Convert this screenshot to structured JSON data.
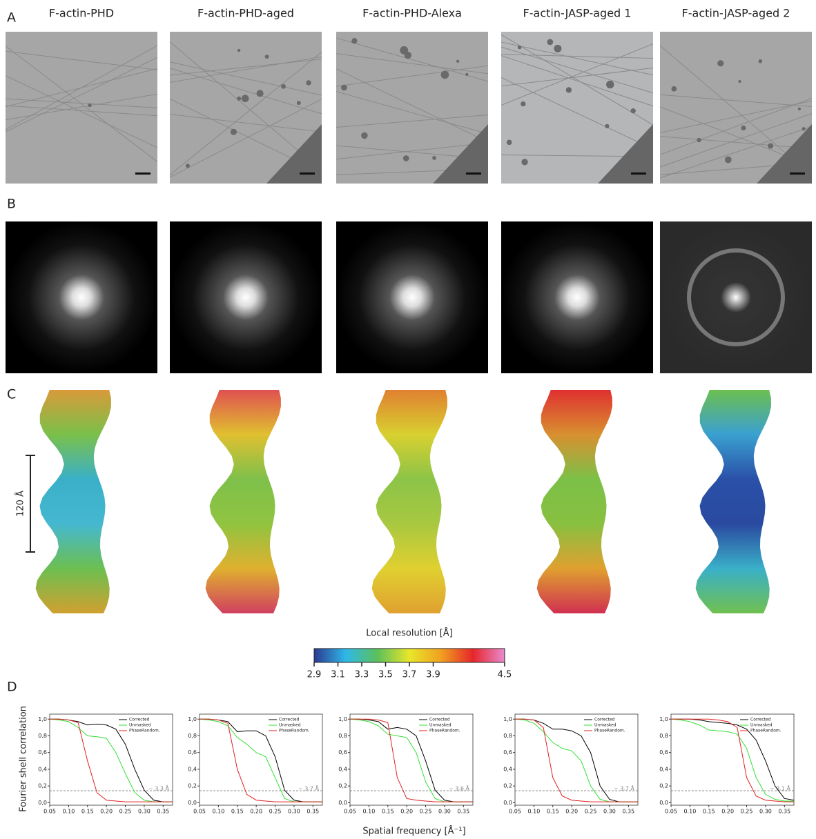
{
  "panel_labels": [
    "A",
    "B",
    "C",
    "D"
  ],
  "columns": [
    "F-actin-PHD",
    "F-actin-PHD-aged",
    "F-actin-PHD-Alexa",
    "F-actin-JASP-aged 1",
    "F-actin-JASP-aged 2"
  ],
  "scale_bar": "120 Å",
  "colorbar": {
    "label": "Local resolution [Å]",
    "lim": [
      2.9,
      4.5
    ],
    "ticks": [
      2.9,
      3.1,
      3.3,
      3.5,
      3.7,
      3.9,
      4.5
    ],
    "colors": [
      "#2b3a8f",
      "#2fb8e8",
      "#5cc05a",
      "#e9e62a",
      "#f0a020",
      "#e6262a",
      "#e98ad0"
    ]
  },
  "fsc": {
    "x_label": "Spatial frequency [Å⁻¹]",
    "y_label": "Fourier shell correlation",
    "xlim": [
      0.05,
      0.375
    ],
    "ylim": [
      -0.03,
      1.06
    ],
    "xticks": [
      {
        "value": 0.05,
        "label": "0.05"
      },
      {
        "value": 0.1,
        "label": "0.10"
      },
      {
        "value": 0.15,
        "label": "0.15"
      },
      {
        "value": 0.2,
        "label": "0.20"
      },
      {
        "value": 0.25,
        "label": "0.25"
      },
      {
        "value": 0.3,
        "label": "0.30"
      },
      {
        "value": 0.35,
        "label": "0.35"
      }
    ],
    "yticks": [
      {
        "value": 0,
        "label": "0,0"
      },
      {
        "value": 0.2,
        "label": "0,2"
      },
      {
        "value": 0.4,
        "label": "0,4"
      },
      {
        "value": 0.6,
        "label": "0,6"
      },
      {
        "value": 0.8,
        "label": "0,8"
      },
      {
        "value": 1,
        "label": "1,0"
      }
    ],
    "threshold": 0.143,
    "x": [
      0.05,
      0.075,
      0.1,
      0.125,
      0.15,
      0.175,
      0.2,
      0.225,
      0.25,
      0.275,
      0.3,
      0.325,
      0.35,
      0.375
    ],
    "plots": [
      {
        "resolution_label": "~ 3.3 Å",
        "series": [
          {
            "name": "Corrected",
            "color": "#000000",
            "values": [
              1,
              1,
              0.99,
              0.97,
              0.93,
              0.94,
              0.93,
              0.88,
              0.7,
              0.4,
              0.15,
              0.03,
              0.01,
              0.01
            ]
          },
          {
            "name": "Unmasked",
            "color": "#33e033",
            "values": [
              1,
              0.99,
              0.97,
              0.9,
              0.8,
              0.79,
              0.77,
              0.6,
              0.35,
              0.12,
              0.03,
              0.01,
              0.01,
              0.01
            ]
          },
          {
            "name": "PhaseRandom.",
            "color": "#e02020",
            "values": [
              1,
              1,
              0.99,
              0.96,
              0.5,
              0.12,
              0.03,
              0.02,
              0.01,
              0.01,
              0.01,
              0.01,
              0.01,
              0.01
            ]
          }
        ]
      },
      {
        "resolution_label": "~ 3.7 Å",
        "series": [
          {
            "name": "Corrected",
            "color": "#000000",
            "values": [
              1,
              1,
              0.99,
              0.97,
              0.85,
              0.86,
              0.86,
              0.8,
              0.55,
              0.15,
              0.03,
              0.01,
              0.01,
              0.01
            ]
          },
          {
            "name": "Unmasked",
            "color": "#33e033",
            "values": [
              1,
              0.99,
              0.97,
              0.92,
              0.78,
              0.7,
              0.6,
              0.55,
              0.3,
              0.05,
              0.01,
              0.01,
              0.01,
              0.01
            ]
          },
          {
            "name": "PhaseRandom.",
            "color": "#e02020",
            "values": [
              1,
              1,
              0.99,
              0.95,
              0.4,
              0.1,
              0.03,
              0.02,
              0.01,
              0.01,
              0.01,
              0.01,
              0.01,
              0.01
            ]
          }
        ]
      },
      {
        "resolution_label": "~ 3.6 Å",
        "series": [
          {
            "name": "Corrected",
            "color": "#000000",
            "values": [
              1,
              1,
              0.99,
              0.97,
              0.88,
              0.9,
              0.88,
              0.8,
              0.5,
              0.15,
              0.03,
              0.01,
              0.01,
              0.01
            ]
          },
          {
            "name": "Unmasked",
            "color": "#33e033",
            "values": [
              1,
              0.99,
              0.97,
              0.92,
              0.82,
              0.8,
              0.78,
              0.6,
              0.25,
              0.05,
              0.01,
              0.01,
              0.01,
              0.01
            ]
          },
          {
            "name": "PhaseRandom.",
            "color": "#e02020",
            "values": [
              1,
              1,
              1,
              0.99,
              0.96,
              0.3,
              0.05,
              0.03,
              0.02,
              0.01,
              0.01,
              0.01,
              0.01,
              0.01
            ]
          }
        ]
      },
      {
        "resolution_label": "~ 3.7 Å",
        "series": [
          {
            "name": "Corrected",
            "color": "#000000",
            "values": [
              1,
              1,
              0.99,
              0.95,
              0.88,
              0.88,
              0.86,
              0.8,
              0.6,
              0.2,
              0.04,
              0.01,
              0.01,
              0.01
            ]
          },
          {
            "name": "Unmasked",
            "color": "#33e033",
            "values": [
              1,
              0.99,
              0.95,
              0.85,
              0.72,
              0.65,
              0.62,
              0.5,
              0.2,
              0.04,
              0.01,
              0.01,
              0.01,
              0.01
            ]
          },
          {
            "name": "PhaseRandom.",
            "color": "#e02020",
            "values": [
              1,
              1,
              0.99,
              0.9,
              0.3,
              0.08,
              0.03,
              0.02,
              0.01,
              0.01,
              0.01,
              0.01,
              0.01,
              0.01
            ]
          }
        ]
      },
      {
        "resolution_label": "~ 3.1 Å",
        "series": [
          {
            "name": "Corrected",
            "color": "#000000",
            "values": [
              1,
              1,
              1,
              0.99,
              0.97,
              0.96,
              0.95,
              0.93,
              0.88,
              0.75,
              0.5,
              0.2,
              0.05,
              0.03
            ]
          },
          {
            "name": "Unmasked",
            "color": "#33e033",
            "values": [
              1,
              0.99,
              0.97,
              0.93,
              0.87,
              0.86,
              0.85,
              0.82,
              0.65,
              0.3,
              0.1,
              0.04,
              0.02,
              0.02
            ]
          },
          {
            "name": "PhaseRandom.",
            "color": "#e02020",
            "values": [
              1,
              1,
              1,
              1,
              1,
              0.99,
              0.97,
              0.9,
              0.3,
              0.08,
              0.03,
              0.02,
              0.01,
              0.01
            ]
          }
        ]
      }
    ]
  }
}
